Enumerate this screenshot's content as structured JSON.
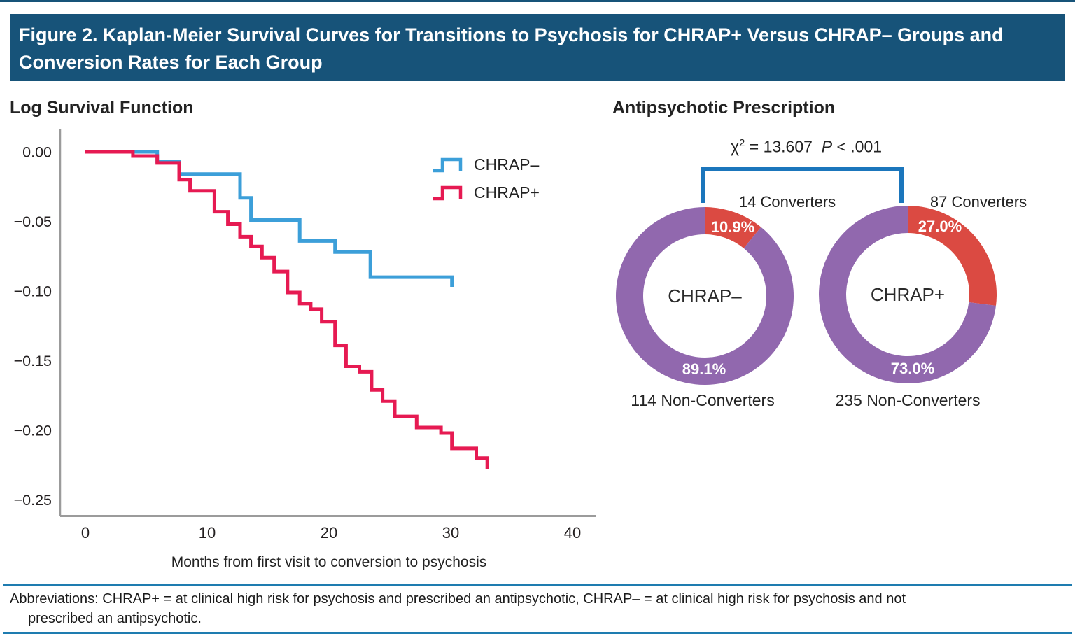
{
  "header": {
    "title": "Figure 2. Kaplan-Meier Survival Curves for Transitions to Psychosis for CHRAP+ Versus CHRAP– Groups and Conversion Rates for Each Group"
  },
  "km_panel": {
    "title": "Log Survival Function",
    "xlabel": "Months from first visit to conversion to psychosis",
    "legend": [
      {
        "label": "CHRAP–",
        "color": "#3c9fd9"
      },
      {
        "label": "CHRAP+",
        "color": "#e61a52"
      }
    ]
  },
  "donut_panel": {
    "title": "Antipsychotic Prescription",
    "stats": {
      "chi_symbol": "χ",
      "chi_sup": "2",
      "chi_eq": " = 13.607",
      "p_label": "P",
      "p_value": " < .001"
    },
    "donuts": [
      {
        "converters": "14 Converters",
        "top_pct": "10.9%",
        "center": "CHRAP–",
        "bottom_pct": "89.1%",
        "non_converters": "114 Non-Converters"
      },
      {
        "converters": "87 Converters",
        "top_pct": "27.0%",
        "center": "CHRAP+",
        "bottom_pct": "73.0%",
        "non_converters": "235 Non-Converters"
      }
    ]
  },
  "footer": {
    "abbrev_line1": "Abbreviations: CHRAP+ = at clinical high risk for psychosis and prescribed an antipsychotic, CHRAP– = at clinical high risk for psychosis and not",
    "abbrev_line2": "prescribed an antipsychotic."
  },
  "colors": {
    "km_blue": "#3c9fd9",
    "km_red": "#e61a52",
    "donut_red": "#db4a42",
    "donut_purple": "#9168ae",
    "bracket_blue": "#1b76bc",
    "header_blue": "#175379",
    "axis_gray": "#9b9b9b"
  },
  "chart_data": [
    {
      "type": "line",
      "subtype": "kaplan-meier-step",
      "title": "Log Survival Function",
      "xlabel": "Months from first visit to conversion to psychosis",
      "ylabel": "",
      "xlim": [
        0,
        40
      ],
      "ylim": [
        -0.25,
        0
      ],
      "x_ticks": [
        0,
        10,
        20,
        30,
        40
      ],
      "x_tick_labels": [
        "0",
        "10",
        "20",
        "30",
        "40"
      ],
      "y_ticks": [
        0,
        -0.05,
        -0.1,
        -0.15,
        -0.2,
        -0.25
      ],
      "y_tick_labels": [
        "0.00",
        "−0.05",
        "−0.10",
        "−0.15",
        "−0.20",
        "−0.25"
      ],
      "grid": false,
      "legend_position": "upper right",
      "series": [
        {
          "name": "CHRAP–",
          "color": "#3c9fd9",
          "points": [
            [
              0,
              0
            ],
            [
              5.9,
              -0.007
            ],
            [
              7.7,
              -0.016
            ],
            [
              12.7,
              -0.033
            ],
            [
              13.6,
              -0.049
            ],
            [
              17.6,
              -0.064
            ],
            [
              20.5,
              -0.072
            ],
            [
              23.4,
              -0.09
            ],
            [
              30.1,
              -0.097
            ]
          ]
        },
        {
          "name": "CHRAP+",
          "color": "#e61a52",
          "points": [
            [
              0,
              0
            ],
            [
              3.9,
              -0.003
            ],
            [
              5.9,
              -0.008
            ],
            [
              7.7,
              -0.02
            ],
            [
              8.6,
              -0.028
            ],
            [
              10.6,
              -0.043
            ],
            [
              11.7,
              -0.052
            ],
            [
              12.7,
              -0.061
            ],
            [
              13.6,
              -0.068
            ],
            [
              14.5,
              -0.076
            ],
            [
              15.5,
              -0.086
            ],
            [
              16.6,
              -0.101
            ],
            [
              17.6,
              -0.109
            ],
            [
              18.5,
              -0.113
            ],
            [
              19.4,
              -0.122
            ],
            [
              20.5,
              -0.139
            ],
            [
              21.4,
              -0.154
            ],
            [
              22.5,
              -0.158
            ],
            [
              23.5,
              -0.171
            ],
            [
              24.4,
              -0.179
            ],
            [
              25.4,
              -0.19
            ],
            [
              27.2,
              -0.198
            ],
            [
              29.2,
              -0.202
            ],
            [
              30.1,
              -0.213
            ],
            [
              32.1,
              -0.22
            ],
            [
              33.0,
              -0.228
            ]
          ]
        }
      ]
    },
    {
      "type": "pie",
      "subtype": "donut",
      "title": "Antipsychotic Prescription",
      "group": "CHRAP–",
      "stat_chi2": "13.607",
      "stat_p": "< .001",
      "slices": [
        {
          "name": "Converters",
          "value": 10.9,
          "count": 14,
          "color": "#db4a42"
        },
        {
          "name": "Non-Converters",
          "value": 89.1,
          "count": 114,
          "color": "#9168ae"
        }
      ]
    },
    {
      "type": "pie",
      "subtype": "donut",
      "title": "Antipsychotic Prescription",
      "group": "CHRAP+",
      "stat_chi2": "13.607",
      "stat_p": "< .001",
      "slices": [
        {
          "name": "Converters",
          "value": 27.0,
          "count": 87,
          "color": "#db4a42"
        },
        {
          "name": "Non-Converters",
          "value": 73.0,
          "count": 235,
          "color": "#9168ae"
        }
      ]
    }
  ]
}
